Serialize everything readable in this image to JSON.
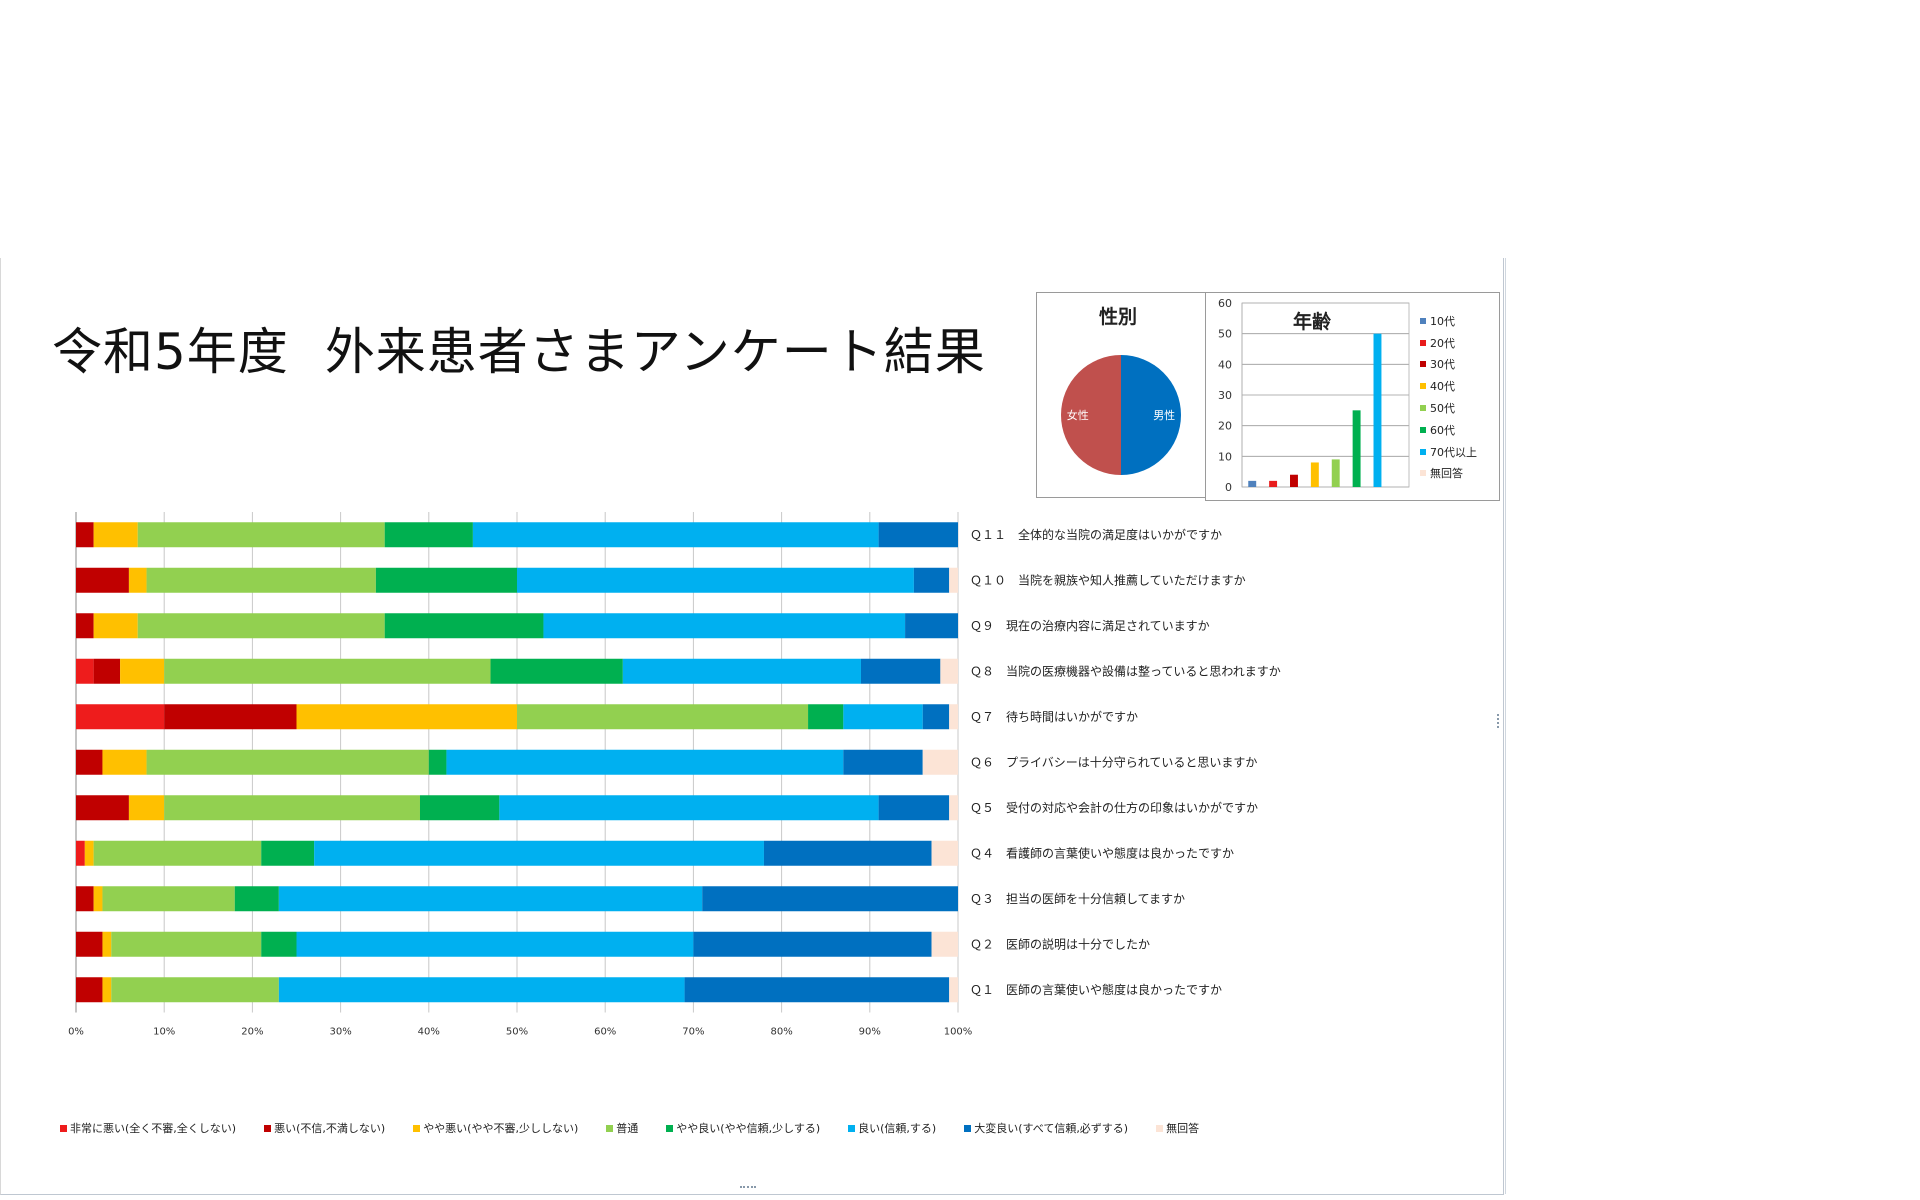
{
  "title_part1": "令和5年度",
  "title_part2": "外来患者さまアンケート結果",
  "chart_data": [
    {
      "type": "bar",
      "orientation": "horizontal",
      "stacked": "percent",
      "categories": [
        "Ｑ１１　全体的な当院の満足度はいかがですか",
        "Ｑ１０　当院を親族や知人推薦していただけますか",
        "Ｑ９　現在の治療内容に満足されていますか",
        "Ｑ８　当院の医療機器や設備は整っていると思われますか",
        "Ｑ７　待ち時間はいかがですか",
        "Ｑ６　プライバシーは十分守られていると思いますか",
        "Ｑ５　受付の対応や会計の仕方の印象はいかがですか",
        "Ｑ４　看護師の言葉使いや態度は良かったですか",
        "Ｑ３　担当の医師を十分信頼してますか",
        "Ｑ２　医師の説明は十分でしたか",
        "Ｑ１　医師の言葉使いや態度は良かったですか"
      ],
      "series": [
        {
          "name": "非常に悪い(全く不審,全くしない)",
          "color": "#ee1c1c",
          "values": [
            0,
            0,
            0,
            2,
            10,
            0,
            0,
            1,
            0,
            0,
            0
          ]
        },
        {
          "name": "悪い(不信,不満しない)",
          "color": "#c00000",
          "values": [
            2,
            6,
            2,
            3,
            15,
            3,
            6,
            0,
            2,
            3,
            3
          ]
        },
        {
          "name": "やや悪い(やや不審,少ししない)",
          "color": "#ffc000",
          "values": [
            5,
            2,
            5,
            5,
            25,
            5,
            4,
            1,
            1,
            1,
            1
          ]
        },
        {
          "name": "普通",
          "color": "#92d050",
          "values": [
            28,
            26,
            28,
            37,
            33,
            32,
            29,
            19,
            15,
            17,
            19
          ]
        },
        {
          "name": "やや良い(やや信頼,少しする)",
          "color": "#00b050",
          "values": [
            10,
            16,
            18,
            15,
            4,
            2,
            9,
            6,
            5,
            4,
            0
          ]
        },
        {
          "name": "良い(信頼,する)",
          "color": "#00b0f0",
          "values": [
            46,
            45,
            41,
            27,
            9,
            45,
            43,
            51,
            48,
            45,
            46
          ]
        },
        {
          "name": "大変良い(すべて信頼,必ずする)",
          "color": "#0070c0",
          "values": [
            9,
            4,
            6,
            9,
            3,
            9,
            8,
            19,
            29,
            27,
            30
          ]
        },
        {
          "name": "無回答",
          "color": "#fce4d6",
          "values": [
            0,
            1,
            0,
            2,
            1,
            4,
            1,
            3,
            0,
            3,
            1
          ]
        }
      ],
      "xticks": [
        "0%",
        "10%",
        "20%",
        "30%",
        "40%",
        "50%",
        "60%",
        "70%",
        "80%",
        "90%",
        "100%"
      ],
      "xlim": [
        0,
        100
      ],
      "legend": "bottom",
      "grid": "vertical"
    },
    {
      "type": "pie",
      "title": "性別",
      "slices": [
        {
          "label": "男性",
          "value": 50,
          "color": "#0070c0"
        },
        {
          "label": "女性",
          "value": 50,
          "color": "#c0504d"
        }
      ]
    },
    {
      "type": "bar",
      "title": "年齢",
      "categories": [
        "10代",
        "20代",
        "30代",
        "40代",
        "50代",
        "60代",
        "70代以上",
        "無回答"
      ],
      "values": [
        2,
        2,
        4,
        8,
        9,
        25,
        50,
        0
      ],
      "colors": [
        "#4f81bd",
        "#e81c1c",
        "#c00000",
        "#ffc000",
        "#92d050",
        "#00b050",
        "#00b0f0",
        "#fce4d6"
      ],
      "yticks": [
        "0",
        "10",
        "20",
        "30",
        "40",
        "50",
        "60"
      ],
      "ylim": [
        0,
        60
      ],
      "legend": "right",
      "grid": "horizontal"
    }
  ]
}
